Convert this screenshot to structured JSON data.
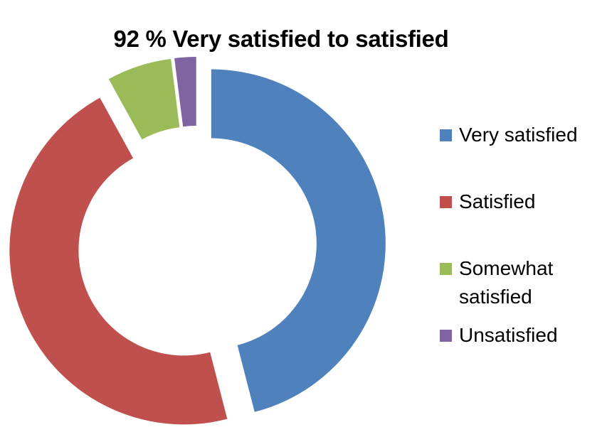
{
  "chart_data": {
    "type": "pie",
    "variant": "donut-exploded",
    "title": "92 % Very satisfied to satisfied",
    "categories": [
      "Very satisfied",
      "Satisfied",
      "Somewhat satisfied",
      "Unsatisfied"
    ],
    "values": [
      46,
      46,
      6,
      2
    ],
    "colors": [
      "#4f81bd",
      "#c0504d",
      "#9bbb59",
      "#8064a2"
    ],
    "legend": "right"
  }
}
